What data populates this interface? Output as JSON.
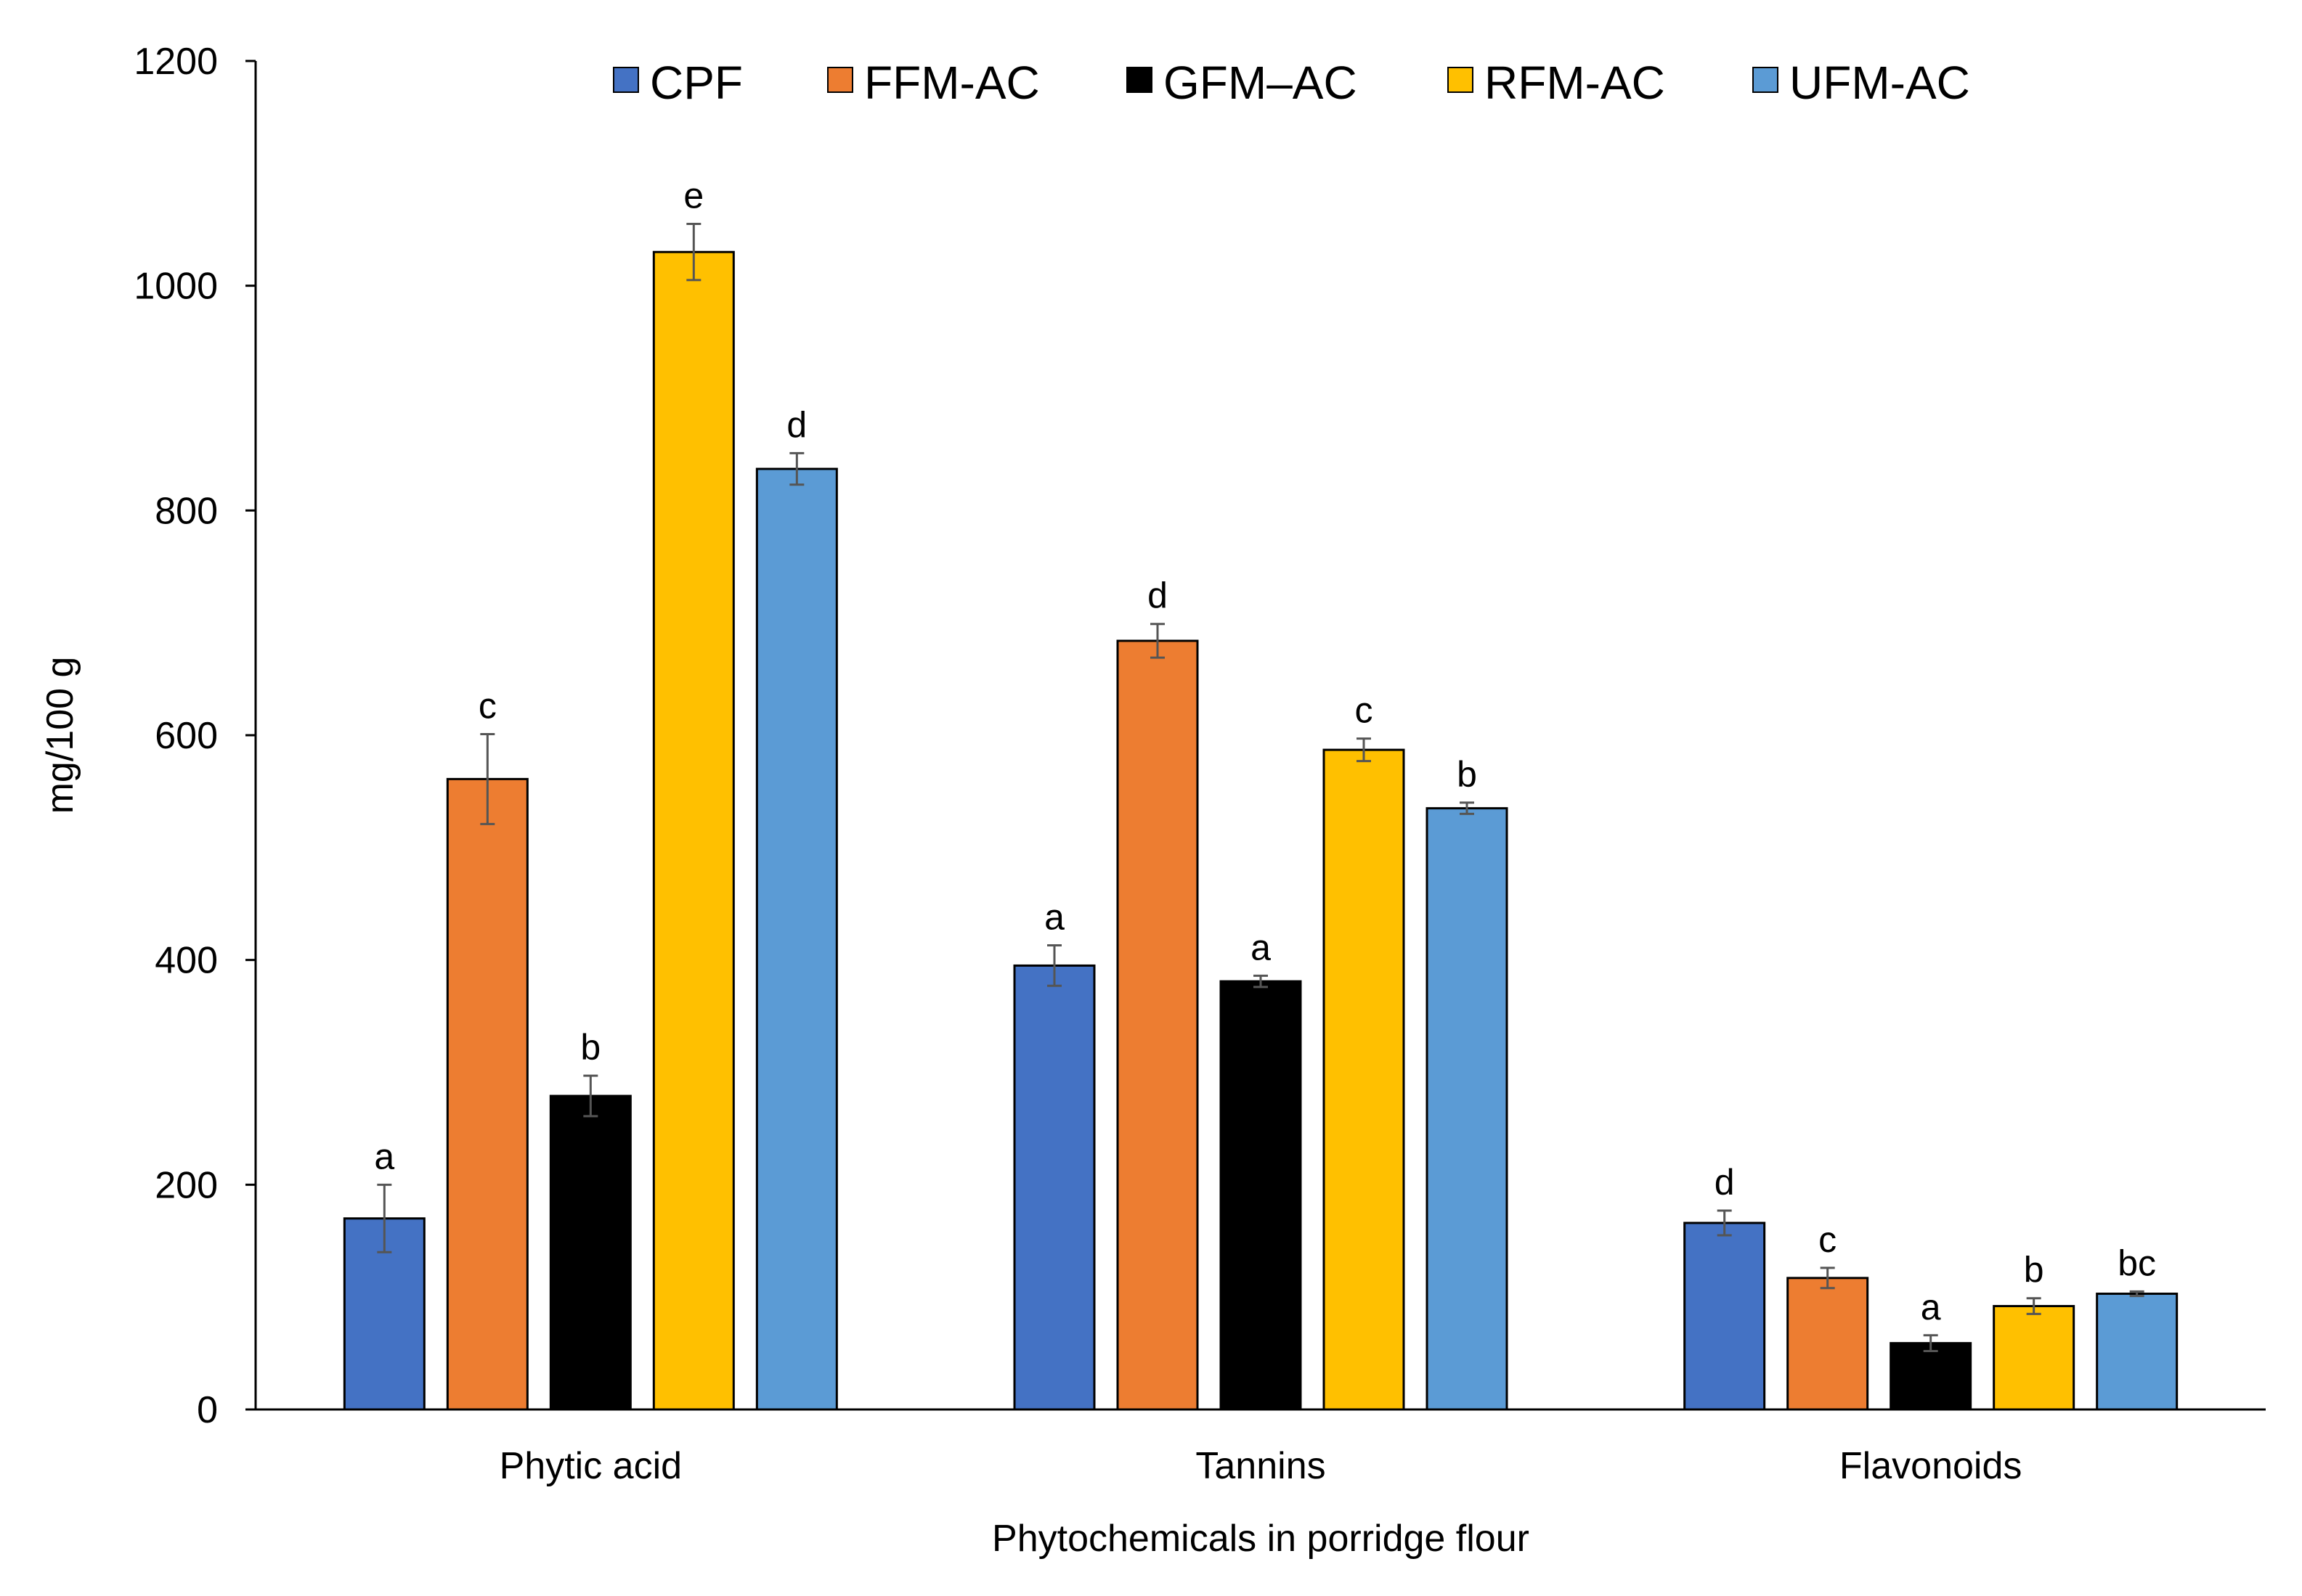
{
  "chart_data": {
    "type": "bar",
    "title": "",
    "xlabel": "Phytochemicals in porridge flour",
    "ylabel": "mg/100 g",
    "ylim": [
      0,
      1200
    ],
    "yticks": [
      0,
      200,
      400,
      600,
      800,
      1000,
      1200
    ],
    "grid": false,
    "legend_position": "top",
    "categories": [
      "Phytic acid",
      "Tannins",
      "Flavonoids"
    ],
    "series": [
      {
        "name": "CPF",
        "color": "#4472C4",
        "values": [
          170,
          395,
          166
        ],
        "errors": [
          30,
          18,
          11
        ],
        "labels": [
          "a",
          "a",
          "d"
        ]
      },
      {
        "name": "FFM-AC",
        "color": "#ED7D31",
        "values": [
          561,
          684,
          117
        ],
        "errors": [
          40,
          15,
          9
        ],
        "labels": [
          "c",
          "d",
          "c"
        ]
      },
      {
        "name": "GFM–AC",
        "color": "#000000",
        "values": [
          279,
          381,
          59
        ],
        "errors": [
          18,
          5,
          7
        ],
        "labels": [
          "b",
          "a",
          "a"
        ]
      },
      {
        "name": "RFM-AC",
        "color": "#FFC000",
        "values": [
          1030,
          587,
          92
        ],
        "errors": [
          25,
          10,
          7
        ],
        "labels": [
          "e",
          "c",
          "b"
        ]
      },
      {
        "name": "UFM-AC",
        "color": "#5B9BD5",
        "values": [
          837,
          535,
          103
        ],
        "errors": [
          14,
          5,
          2
        ],
        "labels": [
          "d",
          "b",
          "bc"
        ]
      }
    ]
  }
}
